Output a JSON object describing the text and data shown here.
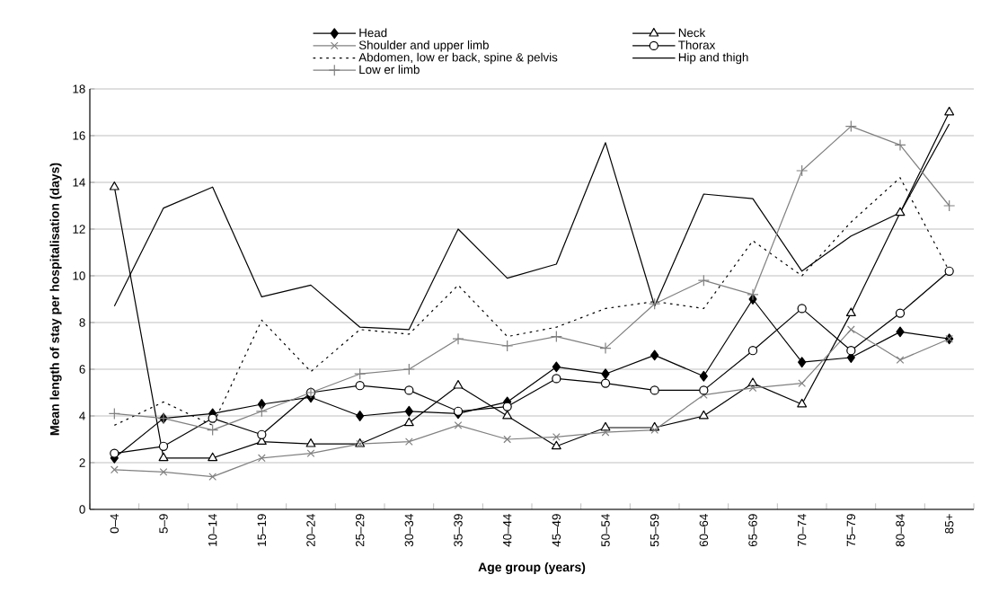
{
  "chart_data": {
    "type": "line",
    "xlabel": "Age group (years)",
    "ylabel": "Mean length of stay per hospitalisation (days)",
    "categories": [
      "0–4",
      "5–9",
      "10–14",
      "15–19",
      "20–24",
      "25–29",
      "30–34",
      "35–39",
      "40–44",
      "45–49",
      "50–54",
      "55–59",
      "60–64",
      "65–69",
      "70–74",
      "75–79",
      "80–84",
      "85+"
    ],
    "ylim": [
      0,
      18
    ],
    "yticks": [
      0,
      2,
      4,
      6,
      8,
      10,
      12,
      14,
      16,
      18
    ],
    "grid": "y",
    "legend": "top",
    "series": [
      {
        "name": "Head",
        "color": "#000000",
        "marker": "diamond",
        "line_style": "solid",
        "values": [
          2.2,
          3.9,
          4.1,
          4.5,
          4.8,
          4.0,
          4.2,
          4.1,
          4.6,
          6.1,
          5.8,
          6.6,
          5.7,
          9.0,
          6.3,
          6.5,
          7.6,
          7.3
        ]
      },
      {
        "name": "Neck",
        "color": "#000000",
        "marker": "triangle",
        "line_style": "solid",
        "values": [
          13.8,
          2.2,
          2.2,
          2.9,
          2.8,
          2.8,
          3.7,
          5.3,
          4.0,
          2.7,
          3.5,
          3.5,
          4.0,
          5.4,
          4.5,
          8.4,
          12.7,
          17.0
        ]
      },
      {
        "name": "Shoulder and upper limb",
        "color": "#808080",
        "marker": "cross",
        "line_style": "solid",
        "values": [
          1.7,
          1.6,
          1.4,
          2.2,
          2.4,
          2.8,
          2.9,
          3.6,
          3.0,
          3.1,
          3.3,
          3.4,
          4.9,
          5.2,
          5.4,
          7.7,
          6.4,
          7.3
        ]
      },
      {
        "name": "Thorax",
        "color": "#000000",
        "marker": "circle",
        "line_style": "solid",
        "values": [
          2.4,
          2.7,
          3.9,
          3.2,
          5.0,
          5.3,
          5.1,
          4.2,
          4.4,
          5.6,
          5.4,
          5.1,
          5.1,
          6.8,
          8.6,
          6.8,
          8.4,
          10.2
        ]
      },
      {
        "name": "Abdomen, low er back, spine & pelvis",
        "color": "#000000",
        "marker": "none",
        "line_style": "dotted",
        "values": [
          3.6,
          4.6,
          3.6,
          8.1,
          5.9,
          7.7,
          7.5,
          9.6,
          7.4,
          7.8,
          8.6,
          8.9,
          8.6,
          11.5,
          10.0,
          12.3,
          14.2,
          10.2
        ]
      },
      {
        "name": "Hip and thigh",
        "color": "#000000",
        "marker": "none",
        "line_style": "solid",
        "values": [
          8.7,
          12.9,
          13.8,
          9.1,
          9.6,
          7.8,
          7.7,
          12.0,
          9.9,
          10.5,
          15.7,
          8.7,
          13.5,
          13.3,
          10.2,
          11.7,
          12.7,
          16.5
        ]
      },
      {
        "name": "Low er limb",
        "color": "#808080",
        "marker": "plus",
        "line_style": "solid",
        "values": [
          4.1,
          3.9,
          3.4,
          4.2,
          5.0,
          5.8,
          6.0,
          7.3,
          7.0,
          7.4,
          6.9,
          8.8,
          9.8,
          9.2,
          14.5,
          16.4,
          15.6,
          13.0
        ]
      }
    ]
  }
}
